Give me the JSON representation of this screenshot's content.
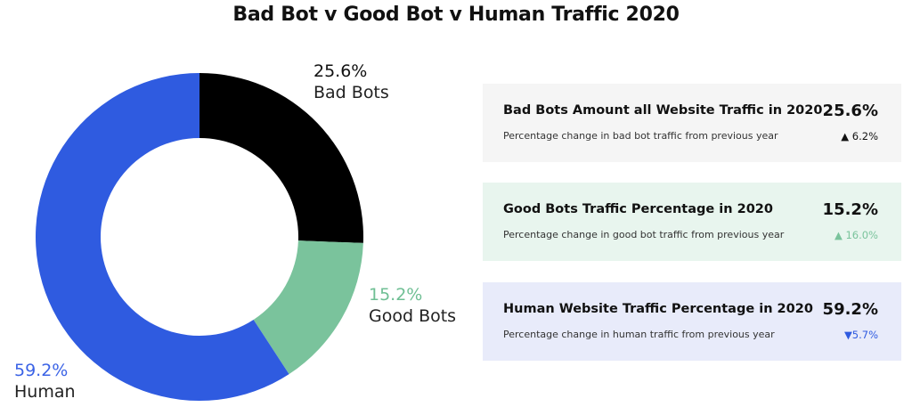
{
  "chart_data": {
    "type": "pie",
    "title": "Bad Bot v Good Bot v Human Traffic 2020",
    "donut": true,
    "slices": [
      {
        "label": "Bad Bots",
        "value": 25.6,
        "value_label": "25.6%",
        "color": "#000000",
        "label_color": "#111111"
      },
      {
        "label": "Good Bots",
        "value": 15.2,
        "value_label": "15.2%",
        "color": "#7ac39c",
        "label_color": "#6fbf94"
      },
      {
        "label": "Human",
        "value": 59.2,
        "value_label": "59.2%",
        "color": "#2f5be0",
        "label_color": "#3b63e6"
      }
    ]
  },
  "cards": [
    {
      "title": "Bad Bots Amount all Website Traffic in 2020",
      "subtitle": "Percentage change in bad bot traffic from previous year",
      "value": "25.6%",
      "change": "▲  6.2%",
      "direction": "up",
      "bg": "#f5f5f5",
      "change_color": "#111111"
    },
    {
      "title": "Good Bots Traffic Percentage in 2020",
      "subtitle": "Percentage change in good bot traffic from previous year",
      "value": "15.2%",
      "change": "▲ 16.0%",
      "direction": "up",
      "bg": "#e8f5ee",
      "change_color": "#7ac39c"
    },
    {
      "title": "Human Website Traffic Percentage in 2020",
      "subtitle": "Percentage change in human traffic from previous year",
      "value": "59.2%",
      "change": "▼5.7%",
      "direction": "down",
      "bg": "#e8ebfa",
      "change_color": "#2f5be0"
    }
  ]
}
